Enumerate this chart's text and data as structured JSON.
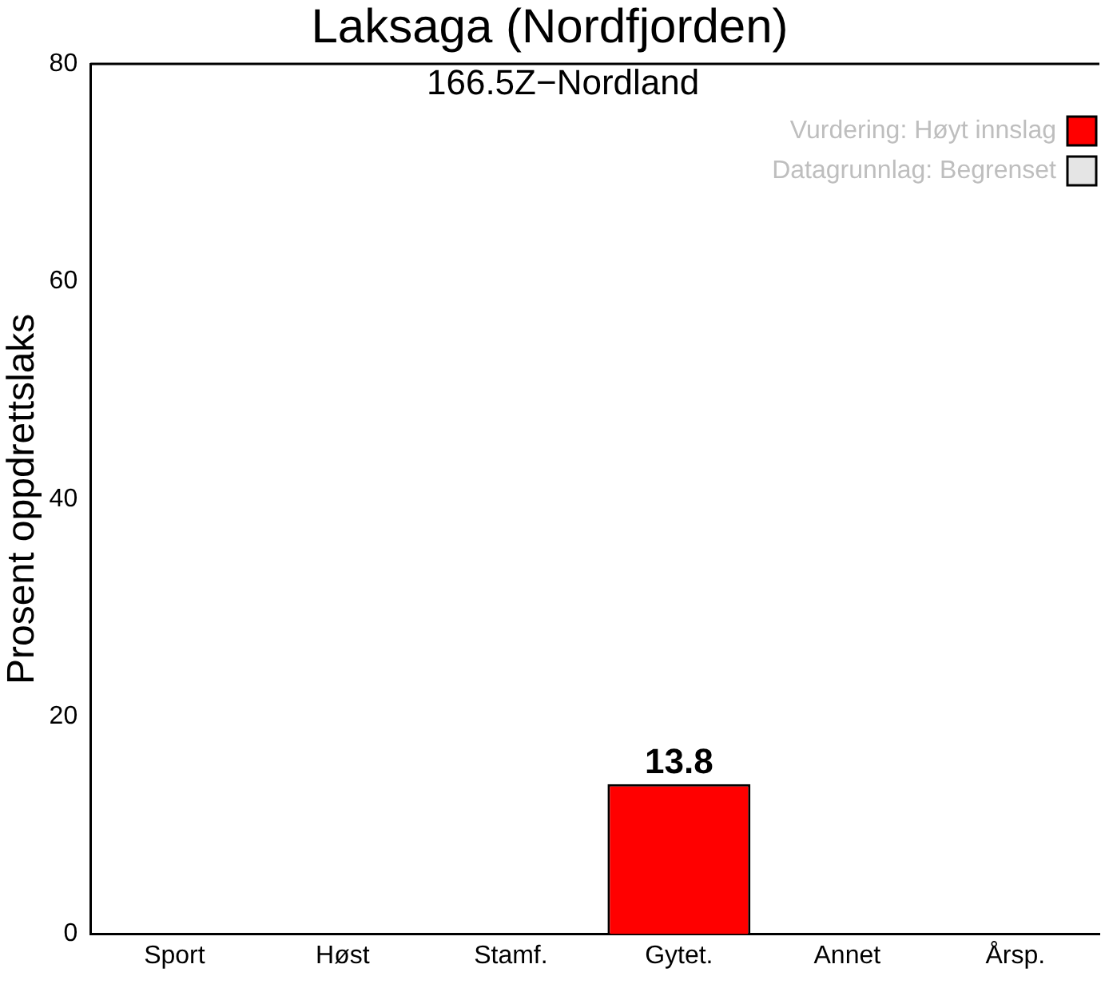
{
  "chart_data": {
    "type": "bar",
    "title": "Laksaga (Nordfjorden)",
    "subtitle": "166.5Z−Nordland",
    "ylabel": "Prosent oppdrettslaks",
    "categories": [
      "Sport",
      "Høst",
      "Stamf.",
      "Gytet.",
      "Annet",
      "Årsp."
    ],
    "series": [
      {
        "name": "Vurdering: Høyt innslag",
        "color": "#ff0000",
        "values": [
          null,
          null,
          null,
          13.8,
          null,
          null
        ]
      },
      {
        "name": "Datagrunnlag: Begrenset",
        "color": "#e5e5e5",
        "values": [
          null,
          null,
          null,
          null,
          null,
          null
        ]
      }
    ],
    "ylim": [
      0,
      80
    ],
    "yticks": [
      0,
      20,
      40,
      60,
      80
    ],
    "grid": false,
    "legend": "top right",
    "data_labels": true
  }
}
